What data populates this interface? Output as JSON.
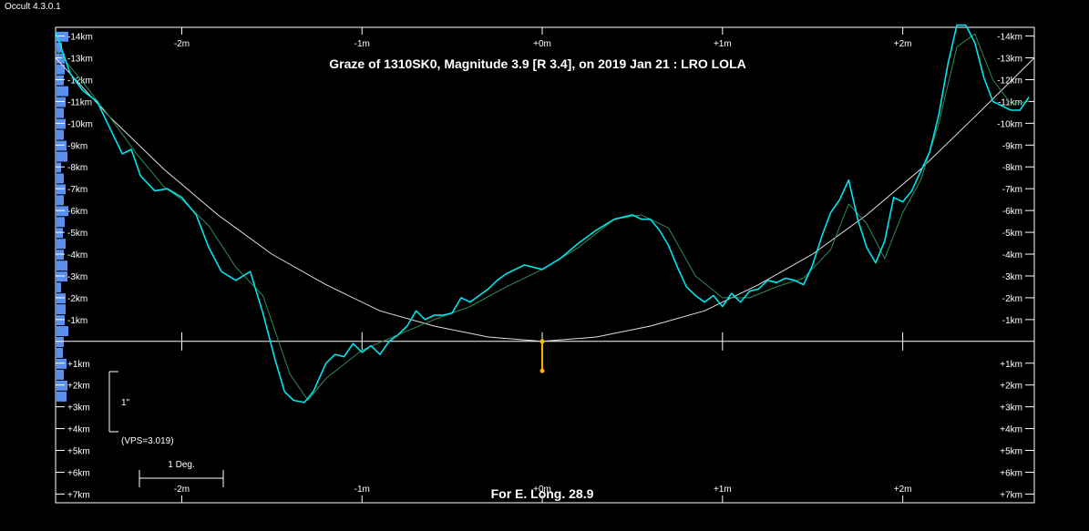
{
  "app": {
    "window_title": "Occult 4.3.0.1"
  },
  "colors": {
    "background": "#000000",
    "profile": "#00e5ee",
    "smooth": "#2e8b57",
    "arc": "#e0e0e0",
    "histogram": "#5b8ff0",
    "marker": "#ffb400"
  },
  "chart_data": {
    "type": "line",
    "title": "Graze of  1310SK0,  Magnitude 3.9 [R 3.4],  on 2019 Jan 21  :  LRO LOLA",
    "footer": "For E. Long. 28.9",
    "x_unit": "minutes",
    "y_unit": "km",
    "xlim": [
      -2.7,
      2.73
    ],
    "ylim": [
      -14.4,
      7.4
    ],
    "x_ticks": [
      -2,
      -1,
      0,
      1,
      2
    ],
    "x_tick_labels": [
      "-2m",
      "-1m",
      "+0m",
      "+1m",
      "+2m"
    ],
    "y_ticks": [
      -14,
      -13,
      -12,
      -11,
      -10,
      -9,
      -8,
      -7,
      -6,
      -5,
      -4,
      -3,
      -2,
      -1,
      1,
      2,
      3,
      4,
      5,
      6,
      7
    ],
    "y_tick_labels": [
      "-14km",
      "-13km",
      "-12km",
      "-11km",
      "-10km",
      "-9km",
      "-8km",
      "-7km",
      "-6km",
      "-5km",
      "-4km",
      "-3km",
      "-2km",
      "-1km",
      "+1km",
      "+2km",
      "+3km",
      "+4km",
      "+5km",
      "+6km",
      "+7km"
    ],
    "scale_bar_arcsec_label": "1\"",
    "vps_label": "(VPS=3.019)",
    "scale_bar_deg_label": "1 Deg.",
    "marker": {
      "x": 0,
      "y": [
        0,
        1.35
      ]
    },
    "series": [
      {
        "role": "profile",
        "x": [
          -2.7,
          -2.62,
          -2.55,
          -2.47,
          -2.4,
          -2.33,
          -2.28,
          -2.23,
          -2.15,
          -2.08,
          -2.0,
          -1.92,
          -1.85,
          -1.78,
          -1.7,
          -1.62,
          -1.55,
          -1.48,
          -1.43,
          -1.38,
          -1.32,
          -1.27,
          -1.2,
          -1.15,
          -1.1,
          -1.05,
          -1.0,
          -0.95,
          -0.9,
          -0.85,
          -0.8,
          -0.75,
          -0.7,
          -0.65,
          -0.6,
          -0.55,
          -0.5,
          -0.45,
          -0.4,
          -0.35,
          -0.3,
          -0.25,
          -0.2,
          -0.1,
          0.0,
          0.1,
          0.2,
          0.3,
          0.4,
          0.5,
          0.55,
          0.6,
          0.65,
          0.7,
          0.75,
          0.8,
          0.85,
          0.9,
          0.95,
          1.0,
          1.05,
          1.1,
          1.15,
          1.2,
          1.25,
          1.3,
          1.35,
          1.4,
          1.45,
          1.5,
          1.55,
          1.6,
          1.65,
          1.7,
          1.75,
          1.8,
          1.85,
          1.9,
          1.95,
          2.0,
          2.05,
          2.1,
          2.15,
          2.2,
          2.25,
          2.3,
          2.35,
          2.4,
          2.45,
          2.5,
          2.55,
          2.6,
          2.65,
          2.7
        ],
        "y": [
          -14.2,
          -12.3,
          -11.5,
          -11.0,
          -9.8,
          -8.6,
          -8.8,
          -7.6,
          -6.9,
          -7.0,
          -6.6,
          -5.8,
          -4.3,
          -3.2,
          -2.8,
          -3.2,
          -1.3,
          0.9,
          2.3,
          2.7,
          2.8,
          2.3,
          1.0,
          0.6,
          0.7,
          0.1,
          0.5,
          0.2,
          0.6,
          0.0,
          -0.3,
          -0.7,
          -1.4,
          -1.0,
          -1.2,
          -1.2,
          -1.3,
          -2.0,
          -1.8,
          -2.1,
          -2.4,
          -2.8,
          -3.1,
          -3.5,
          -3.3,
          -3.8,
          -4.5,
          -5.1,
          -5.6,
          -5.8,
          -5.6,
          -5.6,
          -5.1,
          -4.4,
          -3.4,
          -2.5,
          -2.1,
          -1.8,
          -2.1,
          -1.6,
          -2.2,
          -1.8,
          -2.3,
          -2.4,
          -2.8,
          -2.7,
          -2.9,
          -2.8,
          -2.6,
          -3.5,
          -4.8,
          -5.9,
          -6.5,
          -7.4,
          -5.6,
          -4.3,
          -3.6,
          -4.6,
          -6.6,
          -6.4,
          -6.9,
          -7.8,
          -8.7,
          -10.4,
          -12.7,
          -14.5,
          -14.5,
          -13.7,
          -12.1,
          -11.0,
          -10.8,
          -10.6,
          -10.6,
          -11.2
        ]
      },
      {
        "role": "smoothed",
        "x": [
          -2.7,
          -2.55,
          -2.4,
          -2.25,
          -2.1,
          -2.0,
          -1.85,
          -1.7,
          -1.55,
          -1.4,
          -1.3,
          -1.2,
          -1.0,
          -0.8,
          -0.6,
          -0.4,
          -0.2,
          0.0,
          0.2,
          0.4,
          0.55,
          0.7,
          0.85,
          1.0,
          1.15,
          1.3,
          1.45,
          1.6,
          1.7,
          1.8,
          1.9,
          2.0,
          2.1,
          2.2,
          2.3,
          2.4,
          2.5,
          2.6,
          2.7
        ],
        "y": [
          -13.4,
          -11.9,
          -10.3,
          -8.6,
          -7.1,
          -6.5,
          -5.3,
          -3.4,
          -2.1,
          1.5,
          2.7,
          1.7,
          0.4,
          -0.3,
          -1.0,
          -1.6,
          -2.5,
          -3.3,
          -4.3,
          -5.6,
          -5.8,
          -5.2,
          -3.0,
          -2.0,
          -2.0,
          -2.5,
          -2.9,
          -4.2,
          -6.3,
          -5.4,
          -3.8,
          -5.9,
          -7.4,
          -10.0,
          -13.5,
          -14.1,
          -12.0,
          -10.9,
          -11.0
        ]
      },
      {
        "role": "arc",
        "x": [
          -2.7,
          -2.4,
          -2.1,
          -1.8,
          -1.5,
          -1.2,
          -0.9,
          -0.6,
          -0.3,
          0.0,
          0.3,
          0.6,
          0.9,
          1.2,
          1.5,
          1.8,
          2.1,
          2.4,
          2.73
        ],
        "y": [
          -13.0,
          -10.3,
          -7.9,
          -5.8,
          -4.0,
          -2.6,
          -1.4,
          -0.7,
          -0.2,
          0.0,
          -0.2,
          -0.7,
          -1.4,
          -2.6,
          -4.0,
          -5.8,
          -7.9,
          -10.3,
          -13.0
        ]
      }
    ]
  }
}
